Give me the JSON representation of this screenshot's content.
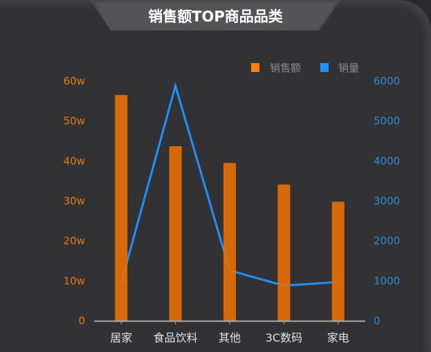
{
  "title": "销售额TOP商品品类",
  "colors": {
    "bar": "#e36f07",
    "line": "#1e90ff",
    "legend_bar": "#ff7f0e",
    "left_axis": "#e37a12",
    "right_axis": "#2a8ad8"
  },
  "chart_data": {
    "type": "bar+line",
    "categories": [
      "居家",
      "食品饮料",
      "其他",
      "3C数码",
      "家电"
    ],
    "series": [
      {
        "name": "销售额",
        "type": "bar",
        "axis": "left",
        "values": [
          56.5,
          43.7,
          39.5,
          34.1,
          29.8
        ]
      },
      {
        "name": "销量",
        "type": "line",
        "axis": "right",
        "values": [
          950,
          5880,
          1260,
          880,
          970
        ]
      }
    ],
    "left_axis": {
      "ylim": [
        0,
        60
      ],
      "ticks": [
        "0",
        "10w",
        "20w",
        "30w",
        "40w",
        "50w",
        "60w"
      ]
    },
    "right_axis": {
      "ylim": [
        0,
        6000
      ],
      "ticks": [
        "0",
        "1000",
        "2000",
        "3000",
        "4000",
        "5000",
        "6000"
      ]
    },
    "legend": {
      "placement": "top-right",
      "entries": [
        "销售额",
        "销量"
      ]
    },
    "grid": false
  }
}
